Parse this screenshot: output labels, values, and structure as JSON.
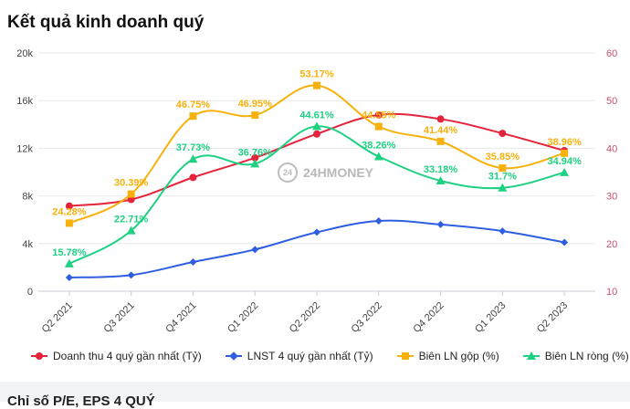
{
  "title": "Kết quả kinh doanh quý",
  "watermark": {
    "logo_text": "24",
    "text": "24HMONEY"
  },
  "footer_text": "Chỉ số P/E, EPS 4 QUÝ",
  "chart_data": {
    "type": "line",
    "categories": [
      "Q2 2021",
      "Q3 2021",
      "Q4 2021",
      "Q1 2022",
      "Q2 2022",
      "Q3 2022",
      "Q4 2022",
      "Q1 2023",
      "Q2 2023"
    ],
    "y_left": {
      "min": 0,
      "max": 20000,
      "ticks": [
        0,
        4000,
        8000,
        12000,
        16000,
        20000
      ],
      "tick_labels": [
        "0",
        "4k",
        "8k",
        "12k",
        "16k",
        "20k"
      ]
    },
    "y_right": {
      "min": 10,
      "max": 60,
      "ticks": [
        10,
        20,
        30,
        40,
        50,
        60
      ],
      "tick_labels": [
        "10",
        "20",
        "30",
        "40",
        "50",
        "60"
      ]
    },
    "series": [
      {
        "name": "Doanh thu 4 quý gần nhất (Tỷ)",
        "axis": "left",
        "color": "#e5233b",
        "marker": "circle",
        "show_labels": false,
        "label_suffix": "",
        "values": [
          7150,
          7700,
          9550,
          11200,
          13200,
          14800,
          14450,
          13250,
          11800
        ]
      },
      {
        "name": "LNST 4 quý gần nhất (Tỷ)",
        "axis": "left",
        "color": "#2f5fe0",
        "marker": "diamond",
        "show_labels": false,
        "label_suffix": "",
        "values": [
          1150,
          1350,
          2450,
          3500,
          4950,
          5900,
          5600,
          5050,
          4100
        ]
      },
      {
        "name": "Biên LN gộp (%)",
        "axis": "right",
        "color": "#f7b10c",
        "marker": "square",
        "show_labels": true,
        "label_suffix": "%",
        "values": [
          24.28,
          30.39,
          46.75,
          46.95,
          53.17,
          44.55,
          41.44,
          35.85,
          38.96
        ],
        "labels": [
          "24.28%",
          "30.39%",
          "46.75%",
          "46.95%",
          "53.17%",
          "44.55%",
          "41.44%",
          "35.85%",
          "38.96%"
        ]
      },
      {
        "name": "Biên LN ròng (%)",
        "axis": "right",
        "color": "#1ed182",
        "marker": "triangle",
        "show_labels": true,
        "label_suffix": "%",
        "values": [
          15.78,
          22.71,
          37.73,
          36.76,
          44.61,
          38.26,
          33.18,
          31.7,
          34.94
        ],
        "labels": [
          "15.78%",
          "22.71%",
          "37.73%",
          "36.76%",
          "44.61%",
          "38.26%",
          "33.18%",
          "31.7%",
          "34.94%"
        ]
      }
    ]
  }
}
